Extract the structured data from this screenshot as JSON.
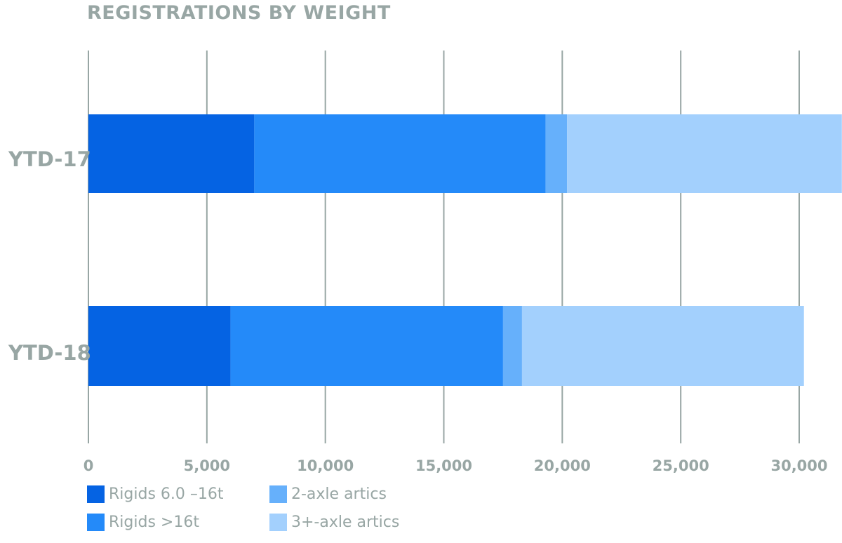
{
  "chart_data": {
    "type": "bar",
    "orientation": "horizontal",
    "stacked": true,
    "title": "REGISTRATIONS BY WEIGHT",
    "categories": [
      "YTD-17",
      "YTD-18"
    ],
    "series": [
      {
        "name": "Rigids 6.0 –16t",
        "color": "#0563e3",
        "values": [
          7000,
          6000
        ]
      },
      {
        "name": "Rigids >16t",
        "color": "#248af9",
        "values": [
          12300,
          11500
        ]
      },
      {
        "name": "2-axle artics",
        "color": "#66b0fb",
        "values": [
          900,
          800
        ]
      },
      {
        "name": "3+-axle artics",
        "color": "#a3d0fd",
        "values": [
          11600,
          11900
        ]
      }
    ],
    "xlim": [
      0,
      32000
    ],
    "xticks": [
      0,
      5000,
      10000,
      15000,
      20000,
      25000,
      30000
    ],
    "xtick_labels": [
      "0",
      "5,000",
      "10,000",
      "15,000",
      "20,000",
      "25,000",
      "30,000"
    ],
    "grid": true,
    "legend_position": "bottom-left",
    "xlabel": "",
    "ylabel": ""
  }
}
